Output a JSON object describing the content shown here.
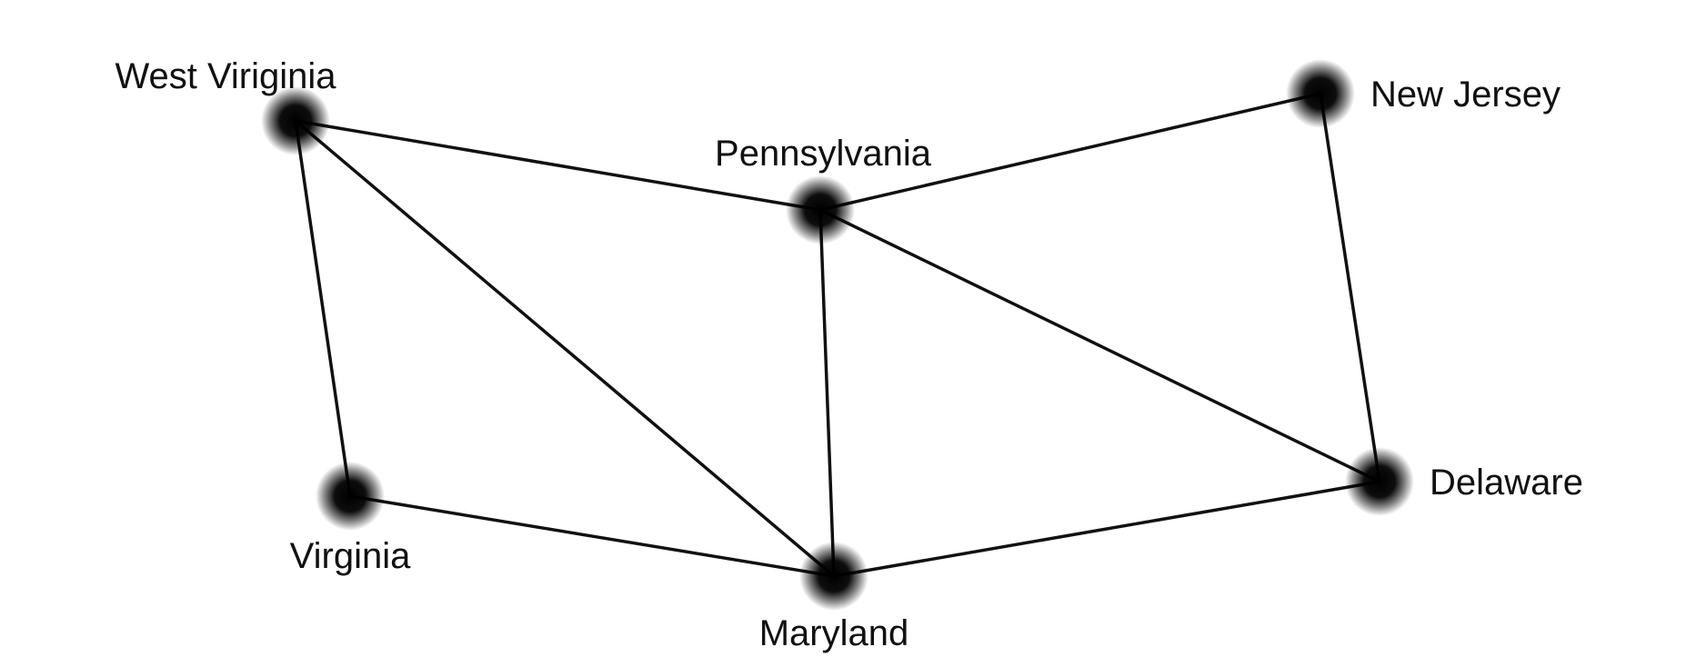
{
  "diagram": {
    "type": "graph",
    "nodes": [
      {
        "id": "wv",
        "label": "West Viriginia"
      },
      {
        "id": "pa",
        "label": "Pennsylvania"
      },
      {
        "id": "nj",
        "label": "New Jersey"
      },
      {
        "id": "va",
        "label": "Virginia"
      },
      {
        "id": "md",
        "label": "Maryland"
      },
      {
        "id": "de",
        "label": "Delaware"
      }
    ],
    "edges": [
      [
        "wv",
        "pa"
      ],
      [
        "wv",
        "va"
      ],
      [
        "wv",
        "md"
      ],
      [
        "pa",
        "nj"
      ],
      [
        "pa",
        "md"
      ],
      [
        "pa",
        "de"
      ],
      [
        "nj",
        "de"
      ],
      [
        "va",
        "md"
      ],
      [
        "md",
        "de"
      ]
    ],
    "colors": {
      "line": "#111111",
      "node": "#000000",
      "background": "#ffffff"
    }
  }
}
